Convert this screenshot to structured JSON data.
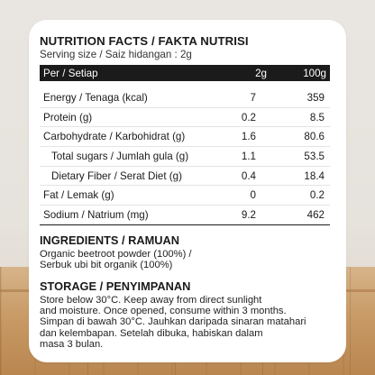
{
  "nutrition": {
    "title": "NUTRITION FACTS / FAKTA NUTRISI",
    "serving": "Serving size / Saiz hidangan : 2g",
    "header": {
      "label": "Per / Setiap",
      "col_a": "2g",
      "col_b": "100g"
    },
    "rows": [
      {
        "name": "Energy / Tenaga (kcal)",
        "a": "7",
        "b": "359",
        "indent": false
      },
      {
        "name": "Protein (g)",
        "a": "0.2",
        "b": "8.5",
        "indent": false
      },
      {
        "name": "Carbohydrate / Karbohidrat (g)",
        "a": "1.6",
        "b": "80.6",
        "indent": false
      },
      {
        "name": "Total sugars / Jumlah gula (g)",
        "a": "1.1",
        "b": "53.5",
        "indent": true
      },
      {
        "name": "Dietary Fiber / Serat Diet (g)",
        "a": "0.4",
        "b": "18.4",
        "indent": true
      },
      {
        "name": "Fat / Lemak (g)",
        "a": "0",
        "b": "0.2",
        "indent": false
      },
      {
        "name": "Sodium / Natrium (mg)",
        "a": "9.2",
        "b": "462",
        "indent": false
      }
    ]
  },
  "ingredients": {
    "title": "INGREDIENTS / RAMUAN",
    "lines": [
      "Organic beetroot powder (100%) /",
      "Serbuk ubi bit organik  (100%)"
    ]
  },
  "storage": {
    "title": "STORAGE / PENYIMPANAN",
    "lines": [
      "Store below 30°C. Keep away from direct sunlight",
      "and moisture. Once opened, consume within 3 months.",
      "Simpan di bawah 30°C. Jauhkan daripada sinaran matahari",
      "dan kelembapan. Setelah dibuka, habiskan dalam",
      "masa 3 bulan."
    ]
  },
  "colors": {
    "card": "#ffffff",
    "header_bg": "#1b1b1b",
    "wood": "#c99b66"
  }
}
